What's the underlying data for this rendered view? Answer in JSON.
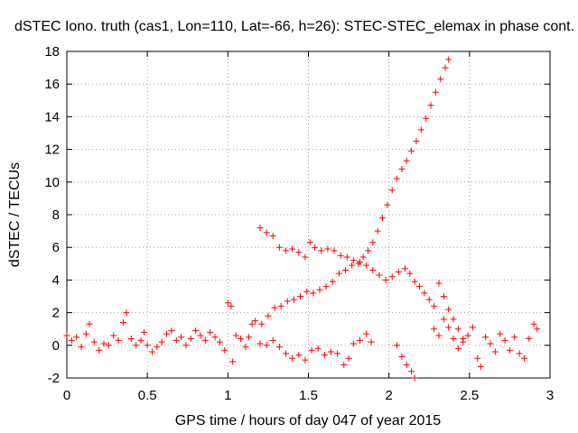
{
  "chart_data": {
    "type": "scatter",
    "title": "dSTEC Iono. truth (cas1, Lon=110, Lat=-66, h=26): STEC-STEC_elemax in phase cont.",
    "xlabel": "GPS time / hours of day 047 of year 2015",
    "ylabel": "dSTEC  / TECUs",
    "xlim": [
      0,
      3
    ],
    "ylim": [
      -2,
      18
    ],
    "xticks": [
      0,
      0.5,
      1,
      1.5,
      2,
      2.5,
      3
    ],
    "xtick_labels": [
      "0",
      "0.5",
      "1",
      "1.5",
      "2",
      "2.5",
      "3"
    ],
    "yticks": [
      -2,
      0,
      2,
      4,
      6,
      8,
      10,
      12,
      14,
      16,
      18
    ],
    "ytick_labels": [
      "-2",
      "0",
      "2",
      "4",
      "6",
      "8",
      "10",
      "12",
      "14",
      "16",
      "18"
    ],
    "grid": true,
    "marker": "+",
    "color": "#ff0000",
    "series": [
      {
        "points": [
          [
            0.0,
            0.6
          ],
          [
            0.03,
            0.3
          ],
          [
            0.06,
            0.5
          ],
          [
            0.09,
            -0.1
          ],
          [
            0.12,
            0.7
          ],
          [
            0.14,
            1.3
          ],
          [
            0.17,
            0.2
          ],
          [
            0.2,
            -0.3
          ],
          [
            0.23,
            0.1
          ],
          [
            0.26,
            0.0
          ],
          [
            0.29,
            0.6
          ],
          [
            0.32,
            0.3
          ],
          [
            0.35,
            1.4
          ],
          [
            0.37,
            2.0
          ],
          [
            0.4,
            0.4
          ],
          [
            0.43,
            0.0
          ],
          [
            0.46,
            0.3
          ],
          [
            0.48,
            0.8
          ],
          [
            0.5,
            0.0
          ],
          [
            0.53,
            -0.4
          ],
          [
            0.56,
            -0.1
          ],
          [
            0.59,
            0.2
          ],
          [
            0.62,
            0.7
          ],
          [
            0.65,
            0.9
          ],
          [
            0.68,
            0.3
          ],
          [
            0.71,
            0.5
          ],
          [
            0.74,
            0.0
          ],
          [
            0.77,
            0.4
          ],
          [
            0.8,
            0.9
          ],
          [
            0.83,
            0.6
          ],
          [
            0.86,
            0.3
          ],
          [
            0.89,
            0.8
          ],
          [
            0.92,
            0.5
          ],
          [
            0.95,
            0.2
          ],
          [
            0.98,
            -0.3
          ],
          [
            1.0,
            2.6
          ],
          [
            1.02,
            2.4
          ],
          [
            1.03,
            -1.0
          ],
          [
            1.05,
            0.6
          ],
          [
            1.08,
            0.4
          ],
          [
            1.11,
            -0.1
          ],
          [
            1.13,
            0.5
          ],
          [
            1.15,
            1.3
          ]
        ]
      },
      {
        "points": [
          [
            1.17,
            1.5
          ],
          [
            1.21,
            1.3
          ],
          [
            1.25,
            1.8
          ],
          [
            1.29,
            2.3
          ],
          [
            1.33,
            2.4
          ],
          [
            1.37,
            2.7
          ],
          [
            1.41,
            2.8
          ],
          [
            1.45,
            3.0
          ],
          [
            1.49,
            3.3
          ],
          [
            1.53,
            3.2
          ],
          [
            1.57,
            3.4
          ],
          [
            1.61,
            3.6
          ],
          [
            1.65,
            3.9
          ],
          [
            1.69,
            4.4
          ],
          [
            1.73,
            4.6
          ],
          [
            1.77,
            4.9
          ],
          [
            1.81,
            5.0
          ],
          [
            1.84,
            5.4
          ],
          [
            1.87,
            5.8
          ],
          [
            1.9,
            6.3
          ],
          [
            1.93,
            7.0
          ],
          [
            1.96,
            7.8
          ],
          [
            1.99,
            8.6
          ],
          [
            2.02,
            9.5
          ],
          [
            2.05,
            10.2
          ],
          [
            2.08,
            10.8
          ],
          [
            2.11,
            11.3
          ],
          [
            2.14,
            11.9
          ],
          [
            2.17,
            12.5
          ],
          [
            2.2,
            13.2
          ],
          [
            2.23,
            13.9
          ],
          [
            2.26,
            14.7
          ],
          [
            2.29,
            15.5
          ],
          [
            2.32,
            16.3
          ],
          [
            2.35,
            17.0
          ],
          [
            2.37,
            17.5
          ]
        ]
      },
      {
        "points": [
          [
            1.2,
            7.2
          ],
          [
            1.24,
            6.9
          ],
          [
            1.28,
            6.7
          ],
          [
            1.32,
            6.0
          ],
          [
            1.36,
            5.8
          ],
          [
            1.4,
            5.9
          ],
          [
            1.44,
            5.7
          ],
          [
            1.48,
            5.4
          ],
          [
            1.51,
            6.3
          ],
          [
            1.54,
            6.0
          ],
          [
            1.58,
            5.8
          ],
          [
            1.62,
            5.9
          ],
          [
            1.66,
            5.8
          ],
          [
            1.7,
            5.5
          ],
          [
            1.74,
            5.4
          ],
          [
            1.78,
            5.2
          ],
          [
            1.82,
            5.1
          ],
          [
            1.86,
            4.9
          ],
          [
            1.9,
            4.6
          ],
          [
            1.94,
            4.3
          ],
          [
            1.98,
            4.0
          ],
          [
            2.02,
            4.2
          ],
          [
            2.06,
            4.5
          ],
          [
            2.1,
            4.7
          ],
          [
            2.13,
            4.4
          ],
          [
            2.16,
            3.9
          ],
          [
            2.19,
            3.6
          ],
          [
            2.22,
            3.2
          ],
          [
            2.25,
            2.8
          ],
          [
            2.28,
            2.4
          ],
          [
            2.31,
            3.8
          ],
          [
            2.34,
            3.0
          ],
          [
            2.37,
            2.2
          ],
          [
            2.4,
            1.6
          ],
          [
            2.43,
            1.0
          ],
          [
            2.46,
            0.4
          ]
        ]
      },
      {
        "points": [
          [
            1.2,
            0.1
          ],
          [
            1.24,
            0.0
          ],
          [
            1.28,
            0.3
          ],
          [
            1.32,
            -0.1
          ],
          [
            1.36,
            -0.5
          ],
          [
            1.4,
            -0.8
          ],
          [
            1.44,
            -0.6
          ],
          [
            1.48,
            -0.9
          ],
          [
            1.52,
            -0.3
          ],
          [
            1.56,
            -0.2
          ],
          [
            1.6,
            -0.6
          ],
          [
            1.64,
            -0.4
          ],
          [
            1.68,
            -0.5
          ],
          [
            1.72,
            -1.2
          ],
          [
            1.75,
            -0.8
          ],
          [
            1.78,
            0.1
          ],
          [
            1.82,
            0.3
          ],
          [
            1.86,
            0.7
          ],
          [
            1.89,
            0.2
          ]
        ]
      },
      {
        "points": [
          [
            2.05,
            0.0
          ],
          [
            2.08,
            -0.7
          ],
          [
            2.11,
            -1.2
          ],
          [
            2.14,
            -1.6
          ],
          [
            2.16,
            -2.0
          ],
          [
            2.28,
            1.0
          ],
          [
            2.31,
            0.6
          ],
          [
            2.34,
            1.6
          ],
          [
            2.37,
            1.1
          ],
          [
            2.4,
            0.4
          ],
          [
            2.43,
            -0.2
          ],
          [
            2.46,
            0.2
          ],
          [
            2.49,
            0.6
          ],
          [
            2.52,
            1.1
          ],
          [
            2.55,
            -0.8
          ],
          [
            2.57,
            -1.3
          ],
          [
            2.6,
            0.5
          ],
          [
            2.63,
            0.1
          ],
          [
            2.66,
            -0.4
          ],
          [
            2.69,
            0.7
          ],
          [
            2.72,
            0.3
          ],
          [
            2.75,
            -0.3
          ],
          [
            2.78,
            0.5
          ],
          [
            2.81,
            -0.5
          ],
          [
            2.84,
            -0.8
          ],
          [
            2.87,
            0.4
          ],
          [
            2.9,
            1.3
          ],
          [
            2.92,
            1.0
          ]
        ]
      }
    ]
  }
}
